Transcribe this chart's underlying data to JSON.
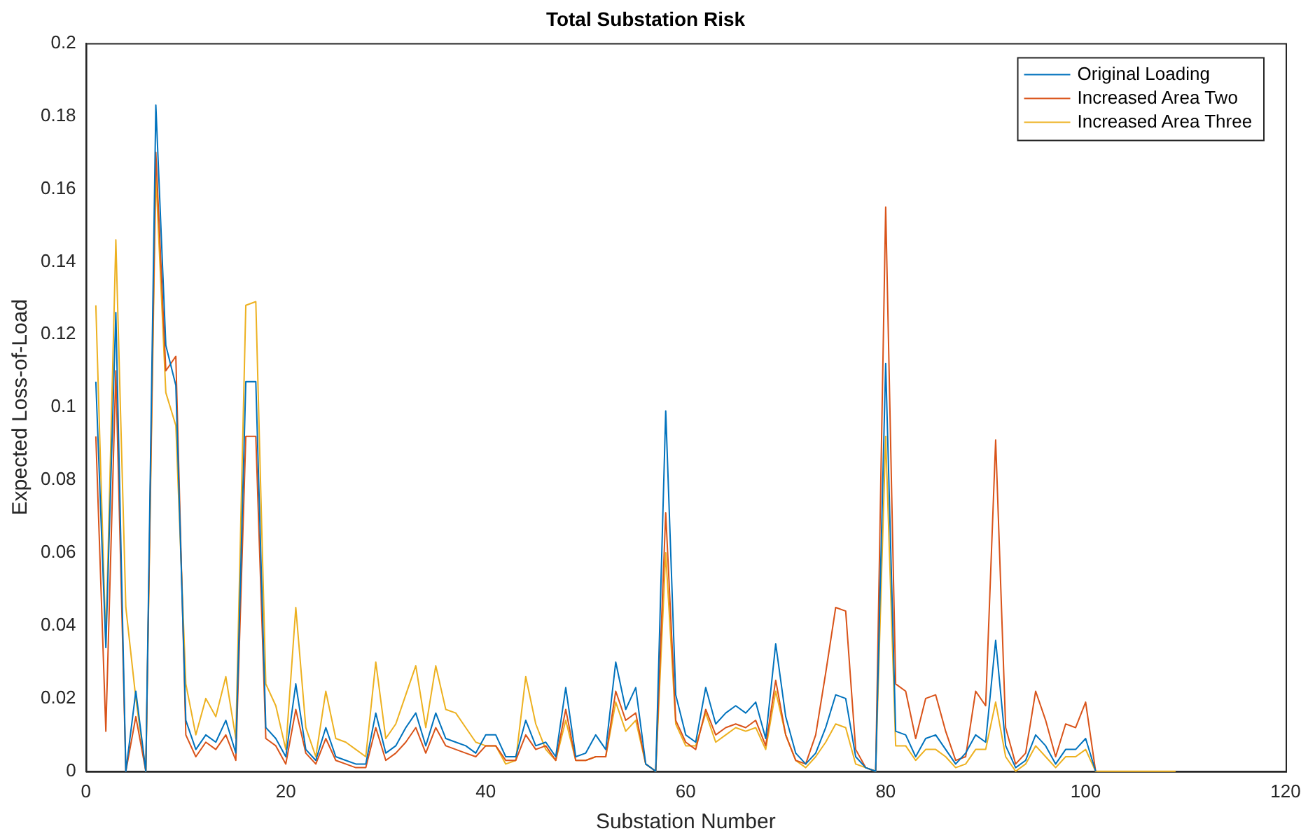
{
  "chart_data": {
    "type": "line",
    "title": "Total Substation Risk",
    "xlabel": "Substation Number",
    "ylabel": "Expected Loss-of-Load",
    "x": [
      1,
      2,
      3,
      4,
      5,
      6,
      7,
      8,
      9,
      10,
      11,
      12,
      13,
      14,
      15,
      16,
      17,
      18,
      19,
      20,
      21,
      22,
      23,
      24,
      25,
      26,
      27,
      28,
      29,
      30,
      31,
      32,
      33,
      34,
      35,
      36,
      37,
      38,
      39,
      40,
      41,
      42,
      43,
      44,
      45,
      46,
      47,
      48,
      49,
      50,
      51,
      52,
      53,
      54,
      55,
      56,
      57,
      58,
      59,
      60,
      61,
      62,
      63,
      64,
      65,
      66,
      67,
      68,
      69,
      70,
      71,
      72,
      73,
      74,
      75,
      76,
      77,
      78,
      79,
      80,
      81,
      82,
      83,
      84,
      85,
      86,
      87,
      88,
      89,
      90,
      91,
      92,
      93,
      94,
      95,
      96,
      97,
      98,
      99,
      100,
      101,
      102,
      103,
      104,
      105,
      106,
      107,
      108,
      109
    ],
    "series": [
      {
        "name": "Original Loading",
        "color": "#0072bd",
        "values": [
          0.107,
          0.034,
          0.126,
          0,
          0.022,
          0,
          0.183,
          0.117,
          0.106,
          0.014,
          0.006,
          0.01,
          0.008,
          0.014,
          0.005,
          0.107,
          0.107,
          0.012,
          0.009,
          0.004,
          0.024,
          0.006,
          0.003,
          0.012,
          0.004,
          0.003,
          0.002,
          0.002,
          0.016,
          0.005,
          0.007,
          0.012,
          0.016,
          0.007,
          0.016,
          0.009,
          0.008,
          0.007,
          0.005,
          0.01,
          0.01,
          0.004,
          0.004,
          0.014,
          0.007,
          0.008,
          0.004,
          0.023,
          0.004,
          0.005,
          0.01,
          0.006,
          0.03,
          0.017,
          0.023,
          0.002,
          0,
          0.099,
          0.021,
          0.01,
          0.008,
          0.023,
          0.013,
          0.016,
          0.018,
          0.016,
          0.019,
          0.009,
          0.035,
          0.015,
          0.005,
          0.002,
          0.005,
          0.012,
          0.021,
          0.02,
          0.004,
          0.001,
          0,
          0.112,
          0.011,
          0.01,
          0.004,
          0.009,
          0.01,
          0.006,
          0.002,
          0.005,
          0.01,
          0.008,
          0.036,
          0.007,
          0.001,
          0.003,
          0.01,
          0.007,
          0.002,
          0.006,
          0.006,
          0.009,
          0,
          null,
          null,
          null,
          null,
          null,
          null,
          null,
          null
        ]
      },
      {
        "name": "Increased Area Two",
        "color": "#d95319",
        "values": [
          0.092,
          0.011,
          0.11,
          0,
          0.015,
          0,
          0.17,
          0.11,
          0.114,
          0.01,
          0.004,
          0.008,
          0.006,
          0.01,
          0.003,
          0.092,
          0.092,
          0.009,
          0.007,
          0.002,
          0.017,
          0.005,
          0.002,
          0.009,
          0.003,
          0.002,
          0.001,
          0.001,
          0.012,
          0.003,
          0.005,
          0.008,
          0.012,
          0.005,
          0.012,
          0.007,
          0.006,
          0.005,
          0.004,
          0.007,
          0.007,
          0.003,
          0.003,
          0.01,
          0.006,
          0.007,
          0.003,
          0.017,
          0.003,
          0.003,
          0.004,
          0.004,
          0.022,
          0.014,
          0.016,
          0.002,
          0,
          0.071,
          0.014,
          0.008,
          0.006,
          0.017,
          0.01,
          0.012,
          0.013,
          0.012,
          0.014,
          0.007,
          0.025,
          0.01,
          0.003,
          0.002,
          0.01,
          0.027,
          0.045,
          0.044,
          0.006,
          0.001,
          0,
          0.155,
          0.024,
          0.022,
          0.009,
          0.02,
          0.021,
          0.011,
          0.003,
          0.004,
          0.022,
          0.018,
          0.091,
          0.012,
          0.002,
          0.005,
          0.022,
          0.014,
          0.004,
          0.013,
          0.012,
          0.019,
          0,
          null,
          null,
          null,
          null,
          null,
          null,
          null,
          null
        ]
      },
      {
        "name": "Increased Area Three",
        "color": "#edb120",
        "values": [
          0.128,
          0.035,
          0.146,
          0.045,
          0.02,
          0,
          0.164,
          0.104,
          0.095,
          0.024,
          0.01,
          0.02,
          0.015,
          0.026,
          0.009,
          0.128,
          0.129,
          0.024,
          0.018,
          0.006,
          0.045,
          0.012,
          0.004,
          0.022,
          0.009,
          0.008,
          0.006,
          0.004,
          0.03,
          0.009,
          0.013,
          0.021,
          0.029,
          0.012,
          0.029,
          0.017,
          0.016,
          0.012,
          0.008,
          0.007,
          0.007,
          0.002,
          0.003,
          0.026,
          0.013,
          0.006,
          0.003,
          0.014,
          0.003,
          0.003,
          0.004,
          0.004,
          0.019,
          0.011,
          0.014,
          0.002,
          0,
          0.06,
          0.013,
          0.007,
          0.007,
          0.016,
          0.008,
          0.01,
          0.012,
          0.011,
          0.012,
          0.006,
          0.022,
          0.01,
          0.003,
          0.001,
          0.004,
          0.008,
          0.013,
          0.012,
          0.002,
          0.001,
          0,
          0.092,
          0.007,
          0.007,
          0.003,
          0.006,
          0.006,
          0.004,
          0.001,
          0.002,
          0.006,
          0.006,
          0.019,
          0.004,
          0,
          0.002,
          0.007,
          0.004,
          0.001,
          0.004,
          0.004,
          0.006,
          0,
          0,
          0,
          0,
          0,
          0,
          0,
          0,
          0
        ]
      }
    ],
    "xlim": [
      0,
      120
    ],
    "xticks": [
      0,
      20,
      40,
      60,
      80,
      100,
      120
    ],
    "ylim": [
      0,
      0.2
    ],
    "yticks": [
      0,
      0.02,
      0.04,
      0.06,
      0.08,
      0.1,
      0.12,
      0.14,
      0.16,
      0.18,
      0.2
    ],
    "grid": false,
    "legend": "top right",
    "marker": "none",
    "line_style": "solid"
  }
}
